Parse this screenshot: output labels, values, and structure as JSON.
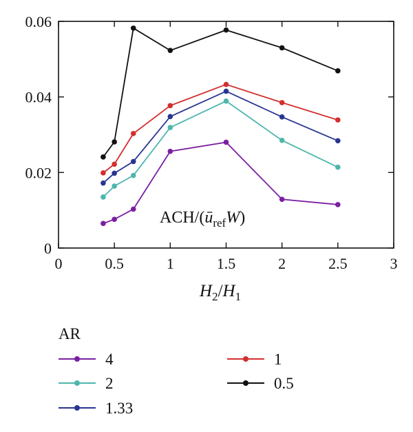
{
  "chart_data": {
    "type": "line",
    "x": [
      0.4,
      0.5,
      0.67,
      1,
      1.5,
      2,
      2.5
    ],
    "xlim": [
      0,
      3
    ],
    "ylim": [
      0,
      0.06
    ],
    "xticks": [
      "0",
      "0.5",
      "1",
      "1.5",
      "2",
      "2.5",
      "3"
    ],
    "yticks": [
      "0",
      "0.02",
      "0.04",
      "0.06"
    ],
    "xlabel": {
      "main": "H",
      "sub1": "2",
      "slash": "/",
      "main2": "H",
      "sub2": "1"
    },
    "annotation": {
      "prefix": "ACH/(",
      "ubar": "ū",
      "sub": "ref",
      "w": "W",
      "close": ")"
    },
    "legend_title": "AR",
    "grid": false,
    "series": [
      {
        "name": "4",
        "color": "#7b1fa2",
        "values": [
          0.0065,
          0.0076,
          0.0103,
          0.0256,
          0.028,
          0.0129,
          0.0115
        ]
      },
      {
        "name": "2",
        "color": "#4db6ac",
        "values": [
          0.0135,
          0.0164,
          0.0192,
          0.0319,
          0.0389,
          0.0285,
          0.0214
        ]
      },
      {
        "name": "1.33",
        "color": "#283593",
        "values": [
          0.0172,
          0.0198,
          0.0229,
          0.0348,
          0.0415,
          0.0347,
          0.0284
        ]
      },
      {
        "name": "1",
        "color": "#d32f2f",
        "values": [
          0.0199,
          0.0222,
          0.0303,
          0.0377,
          0.0433,
          0.0385,
          0.0339
        ]
      },
      {
        "name": "0.5",
        "color": "#111111",
        "values": [
          0.0241,
          0.0281,
          0.0582,
          0.0523,
          0.0577,
          0.053,
          0.0469
        ]
      }
    ]
  }
}
